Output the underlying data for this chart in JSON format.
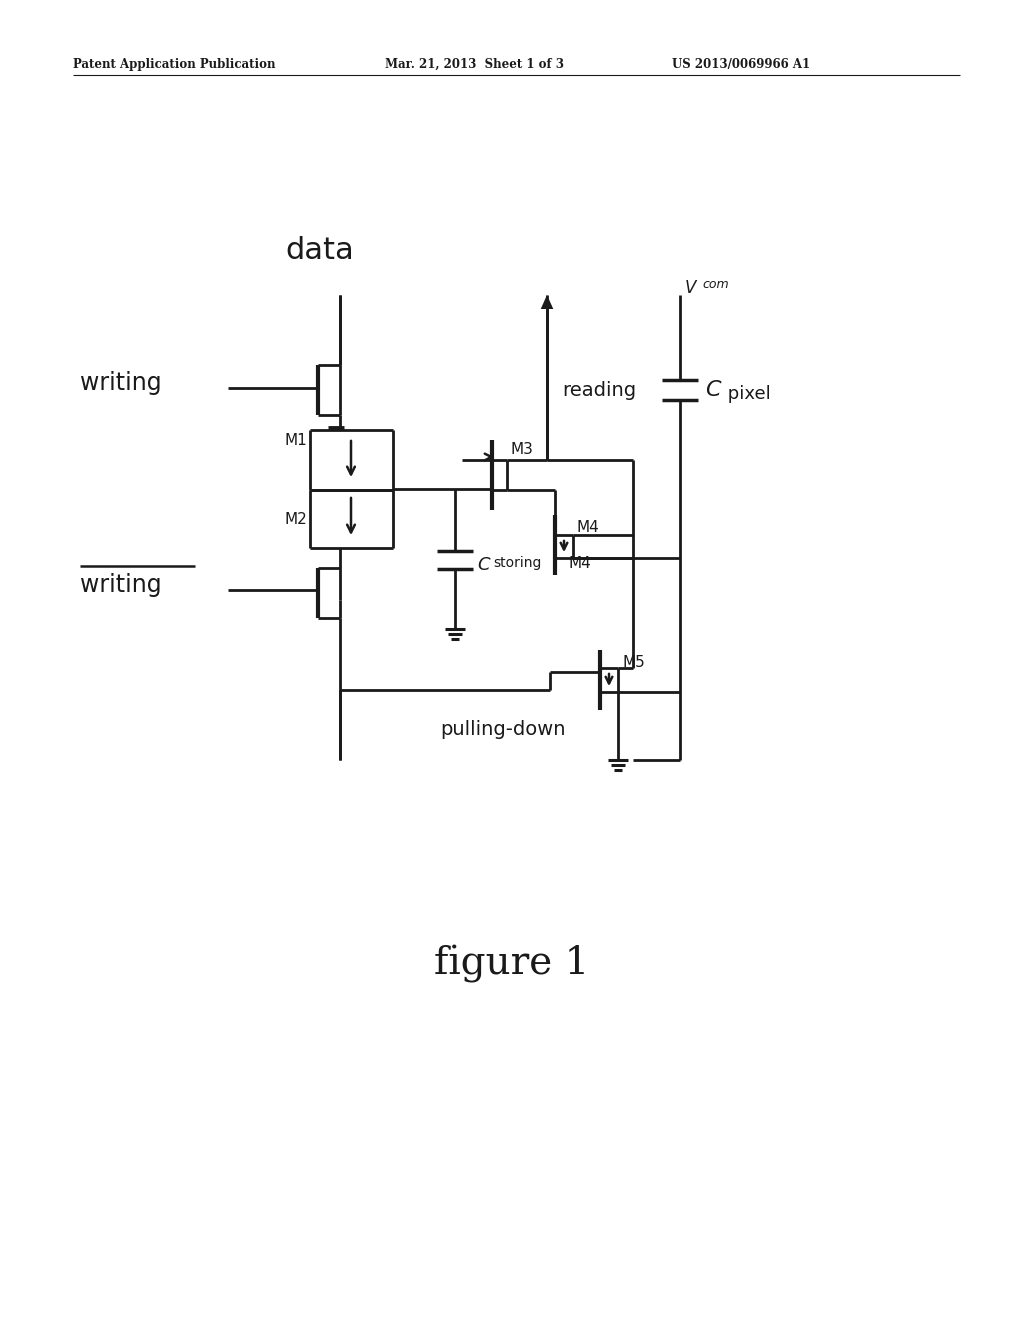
{
  "bg_color": "#ffffff",
  "line_color": "#1a1a1a",
  "header_left": "Patent Application Publication",
  "header_mid": "Mar. 21, 2013  Sheet 1 of 3",
  "header_right": "US 2013/0069966 A1",
  "figure_label": "figure 1",
  "title_data": "data",
  "label_writing_top": "writing",
  "label_writing_bot": "writing",
  "label_reading": "reading",
  "label_pulling_down": "pulling-down",
  "label_M1": "M1",
  "label_M2": "M2",
  "label_M3": "M3",
  "label_M4": "M4",
  "label_M5": "M5",
  "label_Cstoring": "C",
  "label_storing": "storing",
  "label_Cpixel": "C",
  "label_pixel": " pixel",
  "label_Vcom": "V",
  "label_com": "com"
}
